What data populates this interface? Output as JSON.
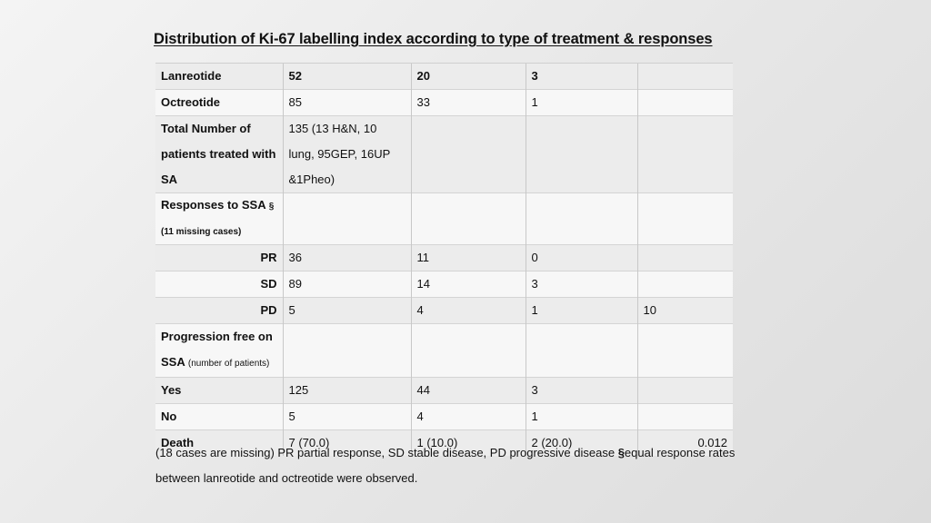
{
  "title": "Distribution of Ki-67 labelling index according to type of treatment & responses",
  "rows": {
    "lanreotide": [
      "Lanreotide",
      "52",
      "20",
      "3",
      ""
    ],
    "octreotide": [
      "Octreotide",
      "85",
      "33",
      "1",
      ""
    ],
    "total_label": "Total Number of patients treated with SA",
    "total_value": "135 (13 H&N, 10 lung, 95GEP, 16UP &1Pheo)",
    "responses_label": "Responses to SSA",
    "responses_symbol": "§",
    "responses_sub": "(11 missing cases)",
    "pr": [
      "PR",
      "36",
      "11",
      "0",
      ""
    ],
    "sd": [
      "SD",
      "89",
      "14",
      "3",
      ""
    ],
    "pd": [
      "PD",
      "5",
      "4",
      "1",
      "10"
    ],
    "pfs_label": "Progression free on SSA",
    "pfs_sub": "(number of patients)",
    "yes": [
      "Yes",
      "125",
      "44",
      "3",
      ""
    ],
    "no": [
      "No",
      "5",
      "4",
      "1",
      ""
    ],
    "death": [
      "Death",
      "7 (70.0)",
      "1 (10.0)",
      "2 (20.0)",
      "0.012"
    ]
  },
  "footnote": {
    "part1": "(18 cases are missing) PR partial response, SD stable disease, PD progressive disease ",
    "symbol": "§",
    "part2": "equal response rates between lanreotide and octreotide were observed."
  }
}
